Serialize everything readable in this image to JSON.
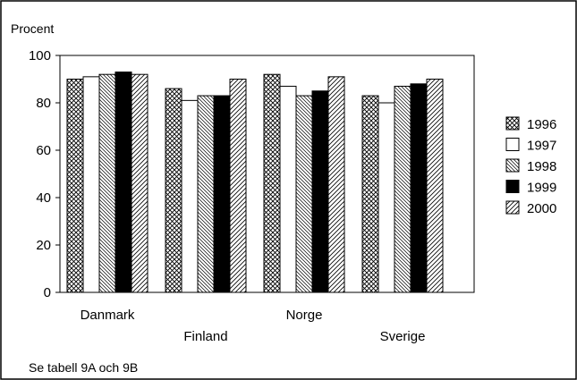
{
  "chart_data": {
    "type": "bar",
    "ylabel": "Procent",
    "ylim": [
      0,
      100
    ],
    "yticks": [
      0,
      20,
      40,
      60,
      80,
      100
    ],
    "categories": [
      "Danmark",
      "Finland",
      "Norge",
      "Sverige"
    ],
    "series": [
      {
        "name": "1996",
        "pattern": "crosshatch",
        "values": [
          90,
          86,
          92,
          83
        ]
      },
      {
        "name": "1997",
        "pattern": "white",
        "values": [
          91,
          81,
          87,
          80
        ]
      },
      {
        "name": "1998",
        "pattern": "diag-back",
        "values": [
          92,
          83,
          83,
          87
        ]
      },
      {
        "name": "1999",
        "pattern": "black",
        "values": [
          93,
          83,
          85,
          88
        ]
      },
      {
        "name": "2000",
        "pattern": "diag-forward",
        "values": [
          92,
          90,
          91,
          90
        ]
      }
    ],
    "legend_position": "right",
    "grid": false
  },
  "footnote": "Se tabell 9A och 9B"
}
